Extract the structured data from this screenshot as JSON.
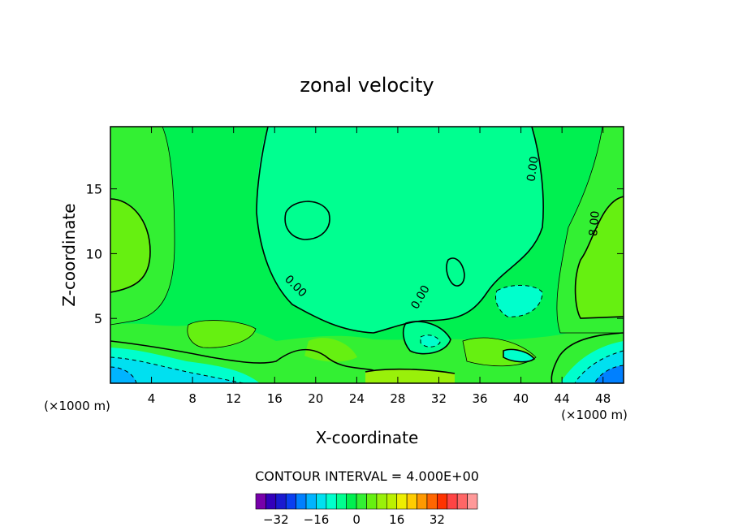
{
  "chart_data": {
    "type": "contour",
    "title": "zonal velocity",
    "xlabel": "X-coordinate",
    "ylabel": "Z-coordinate",
    "x_units_left": "(×1000 m)",
    "x_units_right": "(×1000 m)",
    "xlim": [
      0,
      50
    ],
    "ylim": [
      0,
      19.8
    ],
    "xticks": [
      4,
      8,
      12,
      16,
      20,
      24,
      28,
      32,
      36,
      40,
      44,
      48
    ],
    "yticks": [
      5,
      10,
      15
    ],
    "contour_interval_text": "CONTOUR INTERVAL = 4.000E+00",
    "contour_labels": [
      {
        "text": "0.00",
        "x": 17.8,
        "z": 7.3,
        "angle": 45
      },
      {
        "text": "0.00",
        "x": 30.5,
        "z": 6.5,
        "angle": -60
      },
      {
        "text": "0.00",
        "x": 41.5,
        "z": 16.5,
        "angle": -82
      },
      {
        "text": "8.00",
        "x": 47.5,
        "z": 12.3,
        "angle": -85
      }
    ],
    "colorbar": {
      "colors": [
        "#7700aa",
        "#3300bb",
        "#1a1ad0",
        "#0a3ff0",
        "#0080ff",
        "#00b4ff",
        "#00e0f0",
        "#00ffcc",
        "#00ff90",
        "#00f050",
        "#33f033",
        "#66f011",
        "#99f00a",
        "#bbf000",
        "#eeee00",
        "#ffcc00",
        "#ff9900",
        "#ff6600",
        "#ff3300",
        "#ff4444",
        "#ff6666",
        "#ff9999"
      ],
      "tick_labels": [
        "−32",
        "−16",
        "0",
        "16",
        "32"
      ],
      "tick_values": [
        -32,
        -16,
        0,
        16,
        32
      ],
      "vmin": -40,
      "vmax": 48
    },
    "regions": [
      {
        "level": 0,
        "color": "#00f050",
        "desc": "background"
      },
      {
        "level": 4,
        "color": "#33f033",
        "desc": "left band"
      },
      {
        "level": 8,
        "color": "#66f011",
        "desc": "left lobe"
      },
      {
        "level": 8,
        "color": "#66f011",
        "desc": "right lobe"
      },
      {
        "level": -4,
        "color": "#00ff90",
        "desc": "central region"
      },
      {
        "level": -8,
        "color": "#00ffcc",
        "desc": "right pocket"
      },
      {
        "level": -16,
        "color": "#00e0f0",
        "desc": "bottom-left jet"
      },
      {
        "level": -24,
        "color": "#00b4ff",
        "desc": "bottom-right jet"
      }
    ]
  }
}
